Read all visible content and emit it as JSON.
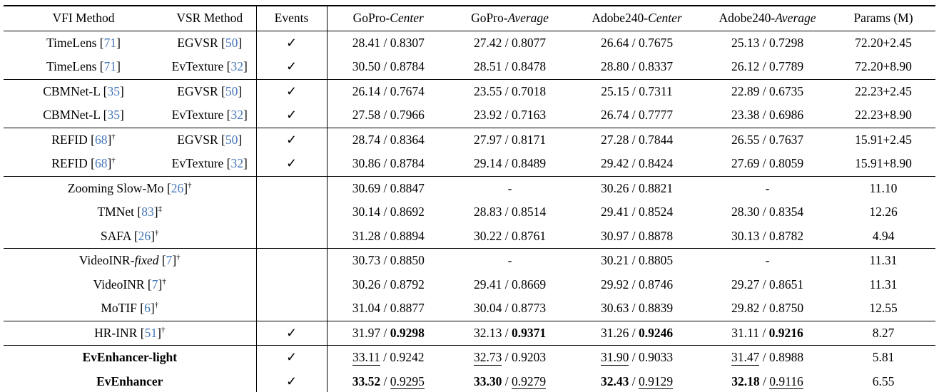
{
  "page": {
    "cite_color": "#4576b7",
    "text_color": "#000000",
    "background": "#ffffff"
  },
  "table": {
    "check_glyph": "✓",
    "dash_glyph": "-",
    "metric_separator": " / ",
    "cite_open": "[",
    "cite_close": "]",
    "headers": [
      {
        "id": "vfi-method",
        "text": "VFI Method",
        "italic": ""
      },
      {
        "id": "vsr-method",
        "text": "VSR Method",
        "italic": ""
      },
      {
        "id": "events",
        "text": "Events",
        "italic": ""
      },
      {
        "id": "gopro-center",
        "text": "GoPro-",
        "italic": "Center"
      },
      {
        "id": "gopro-average",
        "text": "GoPro-",
        "italic": "Average"
      },
      {
        "id": "adobe240-center",
        "text": "Adobe240-",
        "italic": "Center"
      },
      {
        "id": "adobe240-average",
        "text": "Adobe240-",
        "italic": "Average"
      },
      {
        "id": "params",
        "text": "Params (M)",
        "italic": ""
      }
    ],
    "rows": [
      {
        "rule": false,
        "span": false,
        "vfi": {
          "label": "TimeLens",
          "ref": "71",
          "sup": "",
          "italic": "",
          "bold": false
        },
        "vsr": {
          "label": "EGVSR",
          "ref": "50",
          "sup": "",
          "italic": "",
          "bold": false
        },
        "events": true,
        "cells": [
          [
            "28.41",
            "0.8307",
            "n",
            "n"
          ],
          [
            "27.42",
            "0.8077",
            "n",
            "n"
          ],
          [
            "26.64",
            "0.7675",
            "n",
            "n"
          ],
          [
            "25.13",
            "0.7298",
            "n",
            "n"
          ]
        ],
        "params": "72.20+2.45"
      },
      {
        "rule": false,
        "span": false,
        "vfi": {
          "label": "TimeLens",
          "ref": "71",
          "sup": "",
          "italic": "",
          "bold": false
        },
        "vsr": {
          "label": "EvTexture",
          "ref": "32",
          "sup": "",
          "italic": "",
          "bold": false
        },
        "events": true,
        "cells": [
          [
            "30.50",
            "0.8784",
            "n",
            "n"
          ],
          [
            "28.51",
            "0.8478",
            "n",
            "n"
          ],
          [
            "28.80",
            "0.8337",
            "n",
            "n"
          ],
          [
            "26.12",
            "0.7789",
            "n",
            "n"
          ]
        ],
        "params": "72.20+8.90"
      },
      {
        "rule": true,
        "span": false,
        "vfi": {
          "label": "CBMNet-L",
          "ref": "35",
          "sup": "",
          "italic": "",
          "bold": false
        },
        "vsr": {
          "label": "EGVSR",
          "ref": "50",
          "sup": "",
          "italic": "",
          "bold": false
        },
        "events": true,
        "cells": [
          [
            "26.14",
            "0.7674",
            "n",
            "n"
          ],
          [
            "23.55",
            "0.7018",
            "n",
            "n"
          ],
          [
            "25.15",
            "0.7311",
            "n",
            "n"
          ],
          [
            "22.89",
            "0.6735",
            "n",
            "n"
          ]
        ],
        "params": "22.23+2.45"
      },
      {
        "rule": false,
        "span": false,
        "vfi": {
          "label": "CBMNet-L",
          "ref": "35",
          "sup": "",
          "italic": "",
          "bold": false
        },
        "vsr": {
          "label": "EvTexture",
          "ref": "32",
          "sup": "",
          "italic": "",
          "bold": false
        },
        "events": true,
        "cells": [
          [
            "27.58",
            "0.7966",
            "n",
            "n"
          ],
          [
            "23.92",
            "0.7163",
            "n",
            "n"
          ],
          [
            "26.74",
            "0.7777",
            "n",
            "n"
          ],
          [
            "23.38",
            "0.6986",
            "n",
            "n"
          ]
        ],
        "params": "22.23+8.90"
      },
      {
        "rule": true,
        "span": false,
        "vfi": {
          "label": "REFID",
          "ref": "68",
          "sup": "†",
          "italic": "",
          "bold": false
        },
        "vsr": {
          "label": "EGVSR",
          "ref": "50",
          "sup": "",
          "italic": "",
          "bold": false
        },
        "events": true,
        "cells": [
          [
            "28.74",
            "0.8364",
            "n",
            "n"
          ],
          [
            "27.97",
            "0.8171",
            "n",
            "n"
          ],
          [
            "27.28",
            "0.7844",
            "n",
            "n"
          ],
          [
            "26.55",
            "0.7637",
            "n",
            "n"
          ]
        ],
        "params": "15.91+2.45"
      },
      {
        "rule": false,
        "span": false,
        "vfi": {
          "label": "REFID",
          "ref": "68",
          "sup": "†",
          "italic": "",
          "bold": false
        },
        "vsr": {
          "label": "EvTexture",
          "ref": "32",
          "sup": "",
          "italic": "",
          "bold": false
        },
        "events": true,
        "cells": [
          [
            "30.86",
            "0.8784",
            "n",
            "n"
          ],
          [
            "29.14",
            "0.8489",
            "n",
            "n"
          ],
          [
            "29.42",
            "0.8424",
            "n",
            "n"
          ],
          [
            "27.69",
            "0.8059",
            "n",
            "n"
          ]
        ],
        "params": "15.91+8.90"
      },
      {
        "rule": true,
        "span": true,
        "method": {
          "label": "Zooming Slow-Mo",
          "ref": "26",
          "sup": "†",
          "italic": "",
          "bold": false
        },
        "events": false,
        "cells": [
          [
            "30.69",
            "0.8847",
            "n",
            "n"
          ],
          [
            "-",
            "",
            "n",
            "n"
          ],
          [
            "30.26",
            "0.8821",
            "n",
            "n"
          ],
          [
            "-",
            "",
            "n",
            "n"
          ]
        ],
        "params": "11.10"
      },
      {
        "rule": false,
        "span": true,
        "method": {
          "label": "TMNet",
          "ref": "83",
          "sup": "‡",
          "italic": "",
          "bold": false
        },
        "events": false,
        "cells": [
          [
            "30.14",
            "0.8692",
            "n",
            "n"
          ],
          [
            "28.83",
            "0.8514",
            "n",
            "n"
          ],
          [
            "29.41",
            "0.8524",
            "n",
            "n"
          ],
          [
            "28.30",
            "0.8354",
            "n",
            "n"
          ]
        ],
        "params": "12.26"
      },
      {
        "rule": false,
        "span": true,
        "method": {
          "label": "SAFA",
          "ref": "26",
          "sup": "†",
          "italic": "",
          "bold": false
        },
        "events": false,
        "cells": [
          [
            "31.28",
            "0.8894",
            "n",
            "n"
          ],
          [
            "30.22",
            "0.8761",
            "n",
            "n"
          ],
          [
            "30.97",
            "0.8878",
            "n",
            "n"
          ],
          [
            "30.13",
            "0.8782",
            "n",
            "n"
          ]
        ],
        "params": "4.94"
      },
      {
        "rule": true,
        "span": true,
        "method": {
          "label": "VideoINR-",
          "ref": "7",
          "sup": "†",
          "italic": "fixed",
          "bold": false
        },
        "events": false,
        "cells": [
          [
            "30.73",
            "0.8850",
            "n",
            "n"
          ],
          [
            "-",
            "",
            "n",
            "n"
          ],
          [
            "30.21",
            "0.8805",
            "n",
            "n"
          ],
          [
            "-",
            "",
            "n",
            "n"
          ]
        ],
        "params": "11.31"
      },
      {
        "rule": false,
        "span": true,
        "method": {
          "label": "VideoINR",
          "ref": "7",
          "sup": "†",
          "italic": "",
          "bold": false
        },
        "events": false,
        "cells": [
          [
            "30.26",
            "0.8792",
            "n",
            "n"
          ],
          [
            "29.41",
            "0.8669",
            "n",
            "n"
          ],
          [
            "29.92",
            "0.8746",
            "n",
            "n"
          ],
          [
            "29.27",
            "0.8651",
            "n",
            "n"
          ]
        ],
        "params": "11.31"
      },
      {
        "rule": false,
        "span": true,
        "method": {
          "label": "MoTIF",
          "ref": "6",
          "sup": "†",
          "italic": "",
          "bold": false
        },
        "events": false,
        "cells": [
          [
            "31.04",
            "0.8877",
            "n",
            "n"
          ],
          [
            "30.04",
            "0.8773",
            "n",
            "n"
          ],
          [
            "30.63",
            "0.8839",
            "n",
            "n"
          ],
          [
            "29.82",
            "0.8750",
            "n",
            "n"
          ]
        ],
        "params": "12.55"
      },
      {
        "rule": true,
        "span": true,
        "method": {
          "label": "HR-INR",
          "ref": "51",
          "sup": "†",
          "italic": "",
          "bold": false
        },
        "events": true,
        "cells": [
          [
            "31.97",
            "0.9298",
            "n",
            "b"
          ],
          [
            "32.13",
            "0.9371",
            "n",
            "b"
          ],
          [
            "31.26",
            "0.9246",
            "n",
            "b"
          ],
          [
            "31.11",
            "0.9216",
            "n",
            "b"
          ]
        ],
        "params": "8.27"
      },
      {
        "rule": true,
        "span": true,
        "method": {
          "label": "EvEnhancer-light",
          "ref": "",
          "sup": "",
          "italic": "",
          "bold": true
        },
        "events": true,
        "cells": [
          [
            "33.11",
            "0.9242",
            "u",
            "n"
          ],
          [
            "32.73",
            "0.9203",
            "u",
            "n"
          ],
          [
            "31.90",
            "0.9033",
            "u",
            "n"
          ],
          [
            "31.47",
            "0.8988",
            "u",
            "n"
          ]
        ],
        "params": "5.81"
      },
      {
        "rule": false,
        "span": true,
        "method": {
          "label": "EvEnhancer",
          "ref": "",
          "sup": "",
          "italic": "",
          "bold": true
        },
        "events": true,
        "cells": [
          [
            "33.52",
            "0.9295",
            "b",
            "u"
          ],
          [
            "33.30",
            "0.9279",
            "b",
            "u"
          ],
          [
            "32.43",
            "0.9129",
            "b",
            "u"
          ],
          [
            "32.18",
            "0.9116",
            "b",
            "u"
          ]
        ],
        "params": "6.55"
      }
    ]
  }
}
